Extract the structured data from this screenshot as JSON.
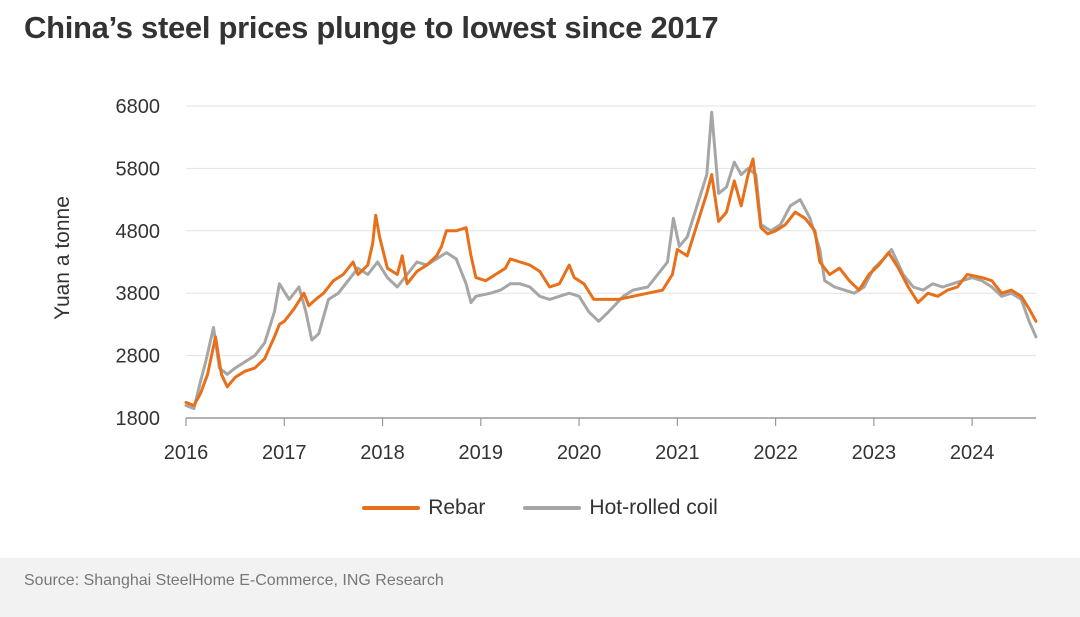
{
  "header": {
    "title": "China’s steel prices plunge to lowest since 2017"
  },
  "footer": {
    "source": "Source: Shanghai SteelHome E-Commerce, ING Research"
  },
  "chart_data": {
    "type": "line",
    "title": "China’s steel prices plunge to lowest since 2017",
    "xlabel": "",
    "ylabel": "Yuan a tonne",
    "ylim": [
      1800,
      6800
    ],
    "xlim": [
      2016.0,
      2024.65
    ],
    "yticks": [
      6800,
      5800,
      4800,
      3800,
      2800,
      1800
    ],
    "xticks": [
      "2016",
      "2017",
      "2018",
      "2019",
      "2020",
      "2021",
      "2022",
      "2023",
      "2024"
    ],
    "grid": true,
    "legend_position": "bottom",
    "series": [
      {
        "name": "Rebar",
        "color": "#e8701a",
        "points": [
          [
            2016.0,
            2050
          ],
          [
            2016.08,
            2000
          ],
          [
            2016.15,
            2200
          ],
          [
            2016.22,
            2500
          ],
          [
            2016.3,
            3100
          ],
          [
            2016.36,
            2500
          ],
          [
            2016.42,
            2300
          ],
          [
            2016.5,
            2450
          ],
          [
            2016.6,
            2550
          ],
          [
            2016.7,
            2600
          ],
          [
            2016.8,
            2750
          ],
          [
            2016.9,
            3100
          ],
          [
            2016.95,
            3300
          ],
          [
            2017.0,
            3350
          ],
          [
            2017.1,
            3550
          ],
          [
            2017.2,
            3800
          ],
          [
            2017.25,
            3600
          ],
          [
            2017.32,
            3700
          ],
          [
            2017.4,
            3800
          ],
          [
            2017.5,
            4000
          ],
          [
            2017.6,
            4100
          ],
          [
            2017.7,
            4300
          ],
          [
            2017.75,
            4100
          ],
          [
            2017.85,
            4250
          ],
          [
            2017.9,
            4600
          ],
          [
            2017.93,
            5050
          ],
          [
            2017.97,
            4700
          ],
          [
            2018.05,
            4200
          ],
          [
            2018.15,
            4100
          ],
          [
            2018.2,
            4400
          ],
          [
            2018.25,
            3950
          ],
          [
            2018.35,
            4150
          ],
          [
            2018.45,
            4250
          ],
          [
            2018.55,
            4400
          ],
          [
            2018.6,
            4550
          ],
          [
            2018.65,
            4800
          ],
          [
            2018.75,
            4800
          ],
          [
            2018.85,
            4850
          ],
          [
            2018.9,
            4400
          ],
          [
            2018.95,
            4050
          ],
          [
            2019.05,
            4000
          ],
          [
            2019.15,
            4100
          ],
          [
            2019.25,
            4200
          ],
          [
            2019.3,
            4350
          ],
          [
            2019.4,
            4300
          ],
          [
            2019.5,
            4250
          ],
          [
            2019.6,
            4150
          ],
          [
            2019.7,
            3900
          ],
          [
            2019.8,
            3950
          ],
          [
            2019.9,
            4250
          ],
          [
            2019.95,
            4050
          ],
          [
            2020.05,
            3950
          ],
          [
            2020.15,
            3700
          ],
          [
            2020.25,
            3700
          ],
          [
            2020.4,
            3700
          ],
          [
            2020.55,
            3750
          ],
          [
            2020.7,
            3800
          ],
          [
            2020.85,
            3850
          ],
          [
            2020.95,
            4100
          ],
          [
            2021.0,
            4500
          ],
          [
            2021.1,
            4400
          ],
          [
            2021.2,
            4900
          ],
          [
            2021.3,
            5400
          ],
          [
            2021.35,
            5700
          ],
          [
            2021.42,
            4950
          ],
          [
            2021.5,
            5100
          ],
          [
            2021.58,
            5600
          ],
          [
            2021.65,
            5200
          ],
          [
            2021.72,
            5700
          ],
          [
            2021.77,
            5950
          ],
          [
            2021.85,
            4850
          ],
          [
            2021.92,
            4750
          ],
          [
            2022.0,
            4800
          ],
          [
            2022.1,
            4900
          ],
          [
            2022.2,
            5100
          ],
          [
            2022.3,
            5000
          ],
          [
            2022.4,
            4800
          ],
          [
            2022.45,
            4300
          ],
          [
            2022.55,
            4100
          ],
          [
            2022.65,
            4200
          ],
          [
            2022.75,
            4000
          ],
          [
            2022.85,
            3850
          ],
          [
            2022.95,
            4100
          ],
          [
            2023.05,
            4250
          ],
          [
            2023.15,
            4450
          ],
          [
            2023.25,
            4200
          ],
          [
            2023.35,
            3900
          ],
          [
            2023.45,
            3650
          ],
          [
            2023.55,
            3800
          ],
          [
            2023.65,
            3750
          ],
          [
            2023.75,
            3850
          ],
          [
            2023.85,
            3900
          ],
          [
            2023.95,
            4100
          ],
          [
            2024.1,
            4050
          ],
          [
            2024.2,
            4000
          ],
          [
            2024.3,
            3800
          ],
          [
            2024.4,
            3850
          ],
          [
            2024.5,
            3750
          ],
          [
            2024.58,
            3550
          ],
          [
            2024.65,
            3350
          ]
        ]
      },
      {
        "name": "Hot-rolled coil",
        "color": "#a6a6a6",
        "points": [
          [
            2016.0,
            2000
          ],
          [
            2016.08,
            1950
          ],
          [
            2016.15,
            2400
          ],
          [
            2016.2,
            2700
          ],
          [
            2016.28,
            3250
          ],
          [
            2016.34,
            2600
          ],
          [
            2016.42,
            2500
          ],
          [
            2016.5,
            2600
          ],
          [
            2016.6,
            2700
          ],
          [
            2016.7,
            2800
          ],
          [
            2016.8,
            3000
          ],
          [
            2016.9,
            3500
          ],
          [
            2016.95,
            3950
          ],
          [
            2017.05,
            3700
          ],
          [
            2017.15,
            3900
          ],
          [
            2017.22,
            3500
          ],
          [
            2017.28,
            3050
          ],
          [
            2017.35,
            3150
          ],
          [
            2017.45,
            3700
          ],
          [
            2017.55,
            3800
          ],
          [
            2017.65,
            4000
          ],
          [
            2017.75,
            4200
          ],
          [
            2017.85,
            4100
          ],
          [
            2017.95,
            4300
          ],
          [
            2018.05,
            4050
          ],
          [
            2018.15,
            3900
          ],
          [
            2018.25,
            4100
          ],
          [
            2018.35,
            4300
          ],
          [
            2018.45,
            4250
          ],
          [
            2018.55,
            4350
          ],
          [
            2018.65,
            4450
          ],
          [
            2018.75,
            4350
          ],
          [
            2018.85,
            3950
          ],
          [
            2018.9,
            3650
          ],
          [
            2018.95,
            3750
          ],
          [
            2019.1,
            3800
          ],
          [
            2019.2,
            3850
          ],
          [
            2019.3,
            3950
          ],
          [
            2019.4,
            3950
          ],
          [
            2019.5,
            3900
          ],
          [
            2019.6,
            3750
          ],
          [
            2019.7,
            3700
          ],
          [
            2019.8,
            3750
          ],
          [
            2019.9,
            3800
          ],
          [
            2020.0,
            3750
          ],
          [
            2020.1,
            3500
          ],
          [
            2020.2,
            3350
          ],
          [
            2020.3,
            3500
          ],
          [
            2020.45,
            3750
          ],
          [
            2020.55,
            3850
          ],
          [
            2020.7,
            3900
          ],
          [
            2020.8,
            4100
          ],
          [
            2020.9,
            4300
          ],
          [
            2020.96,
            5000
          ],
          [
            2021.02,
            4550
          ],
          [
            2021.1,
            4700
          ],
          [
            2021.2,
            5200
          ],
          [
            2021.3,
            5700
          ],
          [
            2021.35,
            6700
          ],
          [
            2021.42,
            5400
          ],
          [
            2021.5,
            5500
          ],
          [
            2021.58,
            5900
          ],
          [
            2021.65,
            5700
          ],
          [
            2021.72,
            5800
          ],
          [
            2021.8,
            5700
          ],
          [
            2021.85,
            4900
          ],
          [
            2021.95,
            4800
          ],
          [
            2022.05,
            4900
          ],
          [
            2022.15,
            5200
          ],
          [
            2022.25,
            5300
          ],
          [
            2022.35,
            5000
          ],
          [
            2022.45,
            4500
          ],
          [
            2022.5,
            4000
          ],
          [
            2022.6,
            3900
          ],
          [
            2022.7,
            3850
          ],
          [
            2022.8,
            3800
          ],
          [
            2022.9,
            3900
          ],
          [
            2023.0,
            4200
          ],
          [
            2023.1,
            4350
          ],
          [
            2023.18,
            4500
          ],
          [
            2023.3,
            4100
          ],
          [
            2023.4,
            3900
          ],
          [
            2023.5,
            3850
          ],
          [
            2023.6,
            3950
          ],
          [
            2023.7,
            3900
          ],
          [
            2023.8,
            3950
          ],
          [
            2023.9,
            4000
          ],
          [
            2024.0,
            4050
          ],
          [
            2024.1,
            4000
          ],
          [
            2024.2,
            3900
          ],
          [
            2024.3,
            3750
          ],
          [
            2024.4,
            3800
          ],
          [
            2024.5,
            3700
          ],
          [
            2024.58,
            3350
          ],
          [
            2024.65,
            3100
          ]
        ]
      }
    ]
  }
}
